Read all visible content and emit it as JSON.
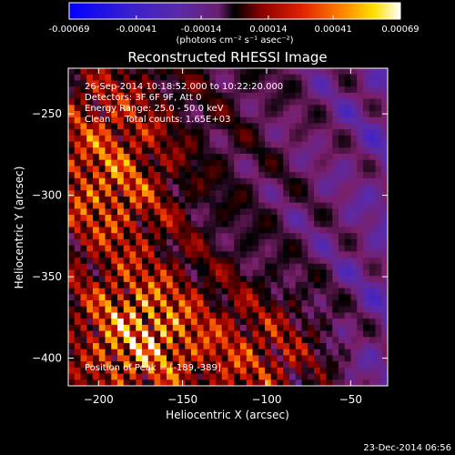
{
  "chart_data": {
    "type": "heatmap",
    "title": "Reconstructed RHESSI Image",
    "colorbar": {
      "ticks": [
        "-0.00069",
        "-0.00041",
        "-0.00014",
        "0.00014",
        "0.00041",
        "0.00069"
      ],
      "range": [
        -0.00069,
        0.00069
      ],
      "label": "(photons cm⁻² s⁻¹ asec⁻²)",
      "colormap": [
        "#0000ff",
        "#3a1fd0",
        "#5a2aa8",
        "#7a1f6a",
        "#000000",
        "#8a0000",
        "#e02000",
        "#ff8000",
        "#ffe000",
        "#ffffff"
      ]
    },
    "xlabel": "Heliocentric X (arcsec)",
    "ylabel": "Heliocentric Y (arcsec)",
    "xlim": [
      -218,
      -28
    ],
    "ylim": [
      -417,
      -222
    ],
    "x_ticks": [
      -200,
      -150,
      -100,
      -50
    ],
    "y_ticks": [
      -250,
      -300,
      -350,
      -400
    ],
    "annotations": [
      "26-Sep-2014 10:18:52.000 to 10:22:20.000",
      "Detectors: 3F 6F 9F, Att 0",
      "Energy Range: 25.0 - 50.0 keV",
      "Clean     Total counts: 1.65E+03"
    ],
    "peak_label": "Position of Peak = [-189,-389]",
    "peak_position": [
      -189,
      -389
    ],
    "bright_sources": [
      {
        "x": -175,
        "y": -385,
        "level": 0.00069
      },
      {
        "x": -195,
        "y": -300,
        "level": 0.00045
      },
      {
        "x": -195,
        "y": -250,
        "level": 0.0003
      },
      {
        "x": -100,
        "y": -400,
        "level": 0.0004
      }
    ]
  },
  "footer": {
    "timestamp": "23-Dec-2014 06:56"
  }
}
